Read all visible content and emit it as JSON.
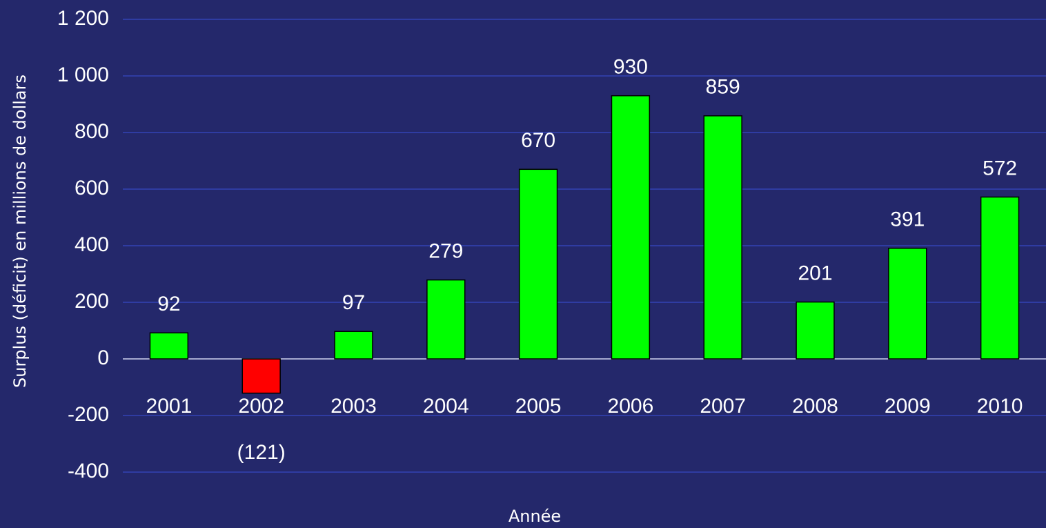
{
  "chart_data": {
    "type": "bar",
    "categories": [
      "2001",
      "2002",
      "2003",
      "2004",
      "2005",
      "2006",
      "2007",
      "2008",
      "2009",
      "2010"
    ],
    "values": [
      92,
      -121,
      97,
      279,
      670,
      930,
      859,
      201,
      391,
      572
    ],
    "value_labels": [
      "92",
      "(121)",
      "97",
      "279",
      "670",
      "930",
      "859",
      "201",
      "391",
      "572"
    ],
    "colors": [
      "#00ff00",
      "#ff0000",
      "#00ff00",
      "#00ff00",
      "#00ff00",
      "#00ff00",
      "#00ff00",
      "#00ff00",
      "#00ff00",
      "#00ff00"
    ],
    "ylim": [
      -400,
      1200
    ],
    "yticks": [
      -400,
      -200,
      0,
      200,
      400,
      600,
      800,
      {
        "value": 1000,
        "label": "1 000"
      },
      {
        "value": 1200,
        "label": "1 200"
      }
    ],
    "grid": true,
    "ylabel": "Surplus (déficit) en millions de dollars",
    "xlabel": "Année"
  }
}
